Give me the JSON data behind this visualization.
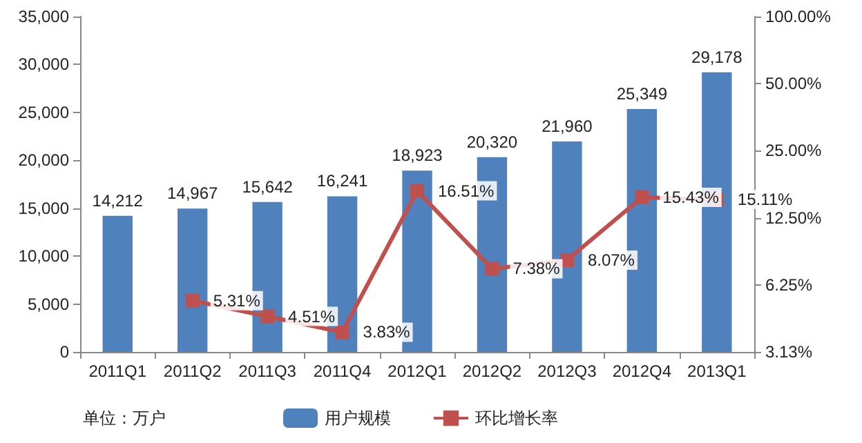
{
  "chart_data": {
    "type": "bar",
    "categories": [
      "2011Q1",
      "2011Q2",
      "2011Q3",
      "2011Q4",
      "2012Q1",
      "2012Q2",
      "2012Q3",
      "2012Q4",
      "2013Q1"
    ],
    "series": [
      {
        "name": "用户规模",
        "color": "#4f81bd",
        "values": [
          14212,
          14967,
          15642,
          16241,
          18923,
          20320,
          21960,
          25349,
          29178
        ],
        "value_labels": [
          "14,212",
          "14,967",
          "15,642",
          "16,241",
          "18,923",
          "20,320",
          "21,960",
          "25,349",
          "29,178"
        ]
      },
      {
        "name": "环比增长率",
        "type": "line",
        "axis": "y2",
        "color": "#c0504d",
        "values": [
          null,
          5.31,
          4.51,
          3.83,
          16.51,
          7.38,
          8.07,
          15.43,
          15.11
        ],
        "value_labels": [
          null,
          "5.31%",
          "4.51%",
          "3.83%",
          "16.51%",
          "7.38%",
          "8.07%",
          "15.43%",
          "15.11%"
        ]
      }
    ],
    "ylim": [
      0,
      35000
    ],
    "yticks": [
      {
        "value": 0,
        "label": "0"
      },
      {
        "value": 5000,
        "label": "5,000"
      },
      {
        "value": 10000,
        "label": "10,000"
      },
      {
        "value": 15000,
        "label": "15,000"
      },
      {
        "value": 20000,
        "label": "20,000"
      },
      {
        "value": 25000,
        "label": "25,000"
      },
      {
        "value": 30000,
        "label": "30,000"
      },
      {
        "value": 35000,
        "label": "35,000"
      }
    ],
    "y2lim": [
      3.125,
      100
    ],
    "y2ticks": [
      {
        "value": 3.125,
        "label": "3.13%"
      },
      {
        "value": 6.25,
        "label": "6.25%"
      },
      {
        "value": 12.5,
        "label": "12.50%"
      },
      {
        "value": 25,
        "label": "25.00%"
      },
      {
        "value": 50,
        "label": "50.00%"
      },
      {
        "value": 100,
        "label": "100.00%"
      }
    ],
    "log": "y2",
    "marker": "square",
    "line_style": "solid",
    "legend": "bottom",
    "annotations": [
      "单位：万户"
    ]
  }
}
